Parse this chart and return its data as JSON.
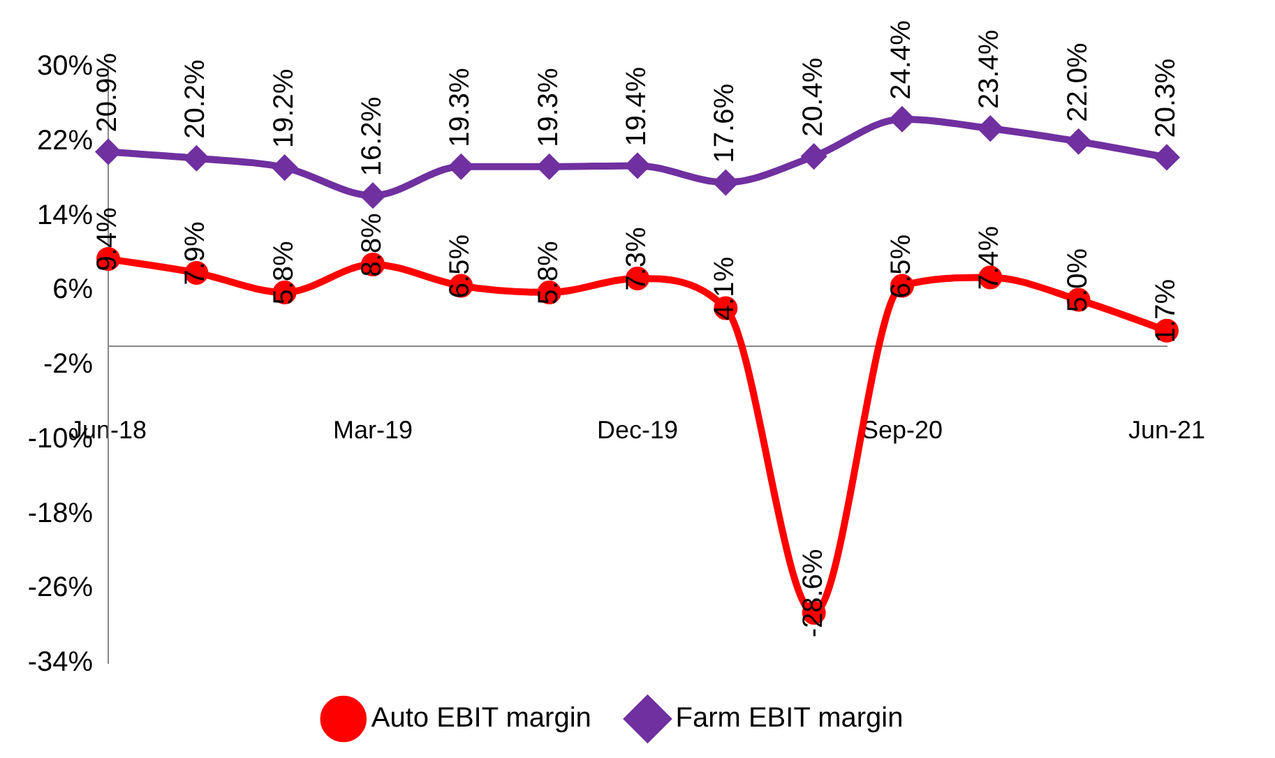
{
  "chart_data": {
    "type": "line",
    "categories": [
      "Jun-18",
      null,
      null,
      "Mar-19",
      null,
      null,
      "Dec-19",
      null,
      null,
      "Sep-20",
      null,
      null,
      "Jun-21"
    ],
    "series": [
      {
        "name": "Auto EBIT margin",
        "color": "#ff0000",
        "marker": "circle",
        "values": [
          9.4,
          7.9,
          5.8,
          8.8,
          6.5,
          5.8,
          7.3,
          4.1,
          -28.6,
          6.5,
          7.4,
          5.0,
          1.7
        ],
        "value_labels": [
          "9.4%",
          "7.9%",
          "5.8%",
          "8.8%",
          "6.5%",
          "5.8%",
          "7.3%",
          "4.1%",
          "-28.6%",
          "6.5%",
          "7.4%",
          "5.0%",
          "1.7%"
        ]
      },
      {
        "name": "Farm EBIT margin",
        "color": "#7030a0",
        "marker": "diamond",
        "values": [
          20.9,
          20.2,
          19.2,
          16.2,
          19.3,
          19.3,
          19.4,
          17.6,
          20.4,
          24.4,
          23.4,
          22.0,
          20.3
        ],
        "value_labels": [
          "20.9%",
          "20.2%",
          "19.2%",
          "16.2%",
          "19.3%",
          "19.3%",
          "19.4%",
          "17.6%",
          "20.4%",
          "24.4%",
          "23.4%",
          "22.0%",
          "20.3%"
        ]
      }
    ],
    "ylim": [
      -34,
      30
    ],
    "yticks": [
      {
        "value": -34,
        "label": "-34%"
      },
      {
        "value": -26,
        "label": "-26%"
      },
      {
        "value": -18,
        "label": "-18%"
      },
      {
        "value": -10,
        "label": "-10%"
      },
      {
        "value": -2,
        "label": "-2%"
      },
      {
        "value": 6,
        "label": "6%"
      },
      {
        "value": 14,
        "label": "14%"
      },
      {
        "value": 22,
        "label": "22%"
      },
      {
        "value": 30,
        "label": "30%"
      }
    ],
    "grid": false,
    "legend": "bottom"
  }
}
